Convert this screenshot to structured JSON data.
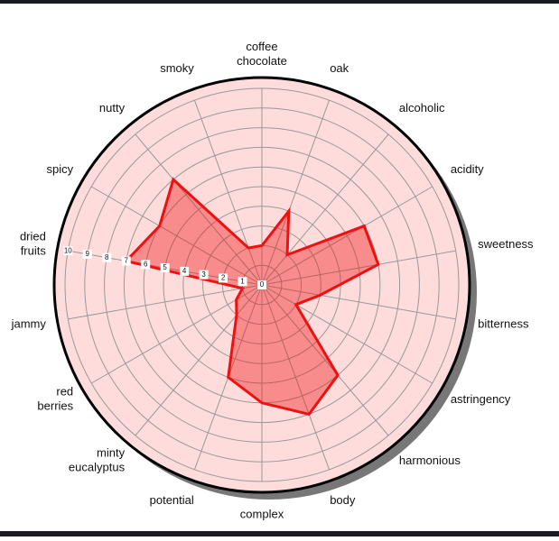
{
  "chart_data": {
    "type": "radar",
    "categories": [
      "coffee\nchocolate",
      "oak",
      "alcoholic",
      "acidity",
      "sweetness",
      "bitterness",
      "astringency",
      "harmonious",
      "body",
      "complex",
      "potential",
      "minty\neucalyptus",
      "red\nberries",
      "jammy",
      "dried\nfruits",
      "spicy",
      "nutty",
      "smoky"
    ],
    "series": [
      {
        "color": "#ee1111",
        "values": [
          2,
          4,
          2,
          6,
          6,
          3,
          2,
          6,
          7,
          6,
          5,
          2,
          1.5,
          1,
          7,
          6,
          7,
          2
        ]
      }
    ],
    "ylim": [
      0,
      10
    ],
    "yticks": [
      0,
      1,
      2,
      3,
      4,
      5,
      6,
      7,
      8,
      9,
      10
    ],
    "grid": true
  }
}
